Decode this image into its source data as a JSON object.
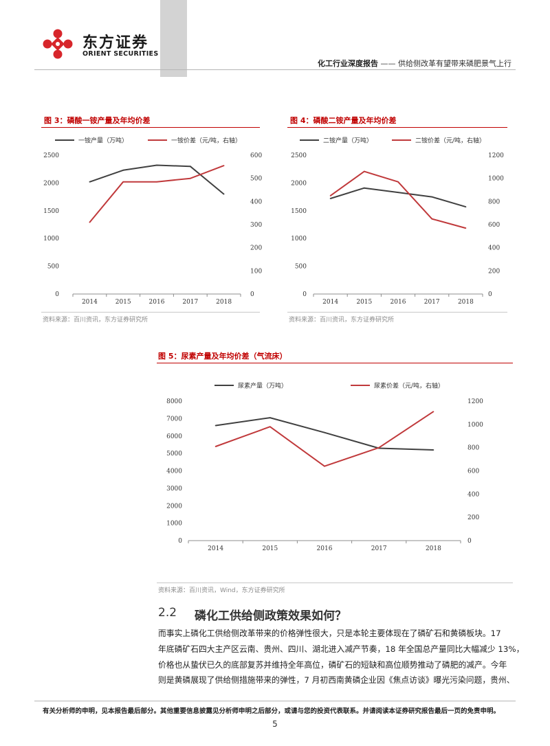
{
  "header": {
    "company_cn": "东方证券",
    "company_en": "ORIENT SECURITIES",
    "report_category": "化工行业深度报告",
    "separator": "——",
    "report_title": "供给侧改革有望带来磷肥景气上行"
  },
  "figures": [
    {
      "title": "图 3：磷酸一铵产量及年均价差",
      "source": "资料来源：百川资讯，东方证券研究所"
    },
    {
      "title": "图 4：磷酸二铵产量及年均价差",
      "source": "资料来源：百川资讯，东方证券研究所"
    },
    {
      "title": "图 5：尿素产量及年均价差（气流床）",
      "source": "资料来源：百川资讯，Wind，东方证券研究所"
    }
  ],
  "colors": {
    "series_dark": "#404040",
    "series_red": "#c0393b",
    "accent": "#c00000"
  },
  "chart_data": [
    {
      "type": "line",
      "title": "",
      "x": [
        "2014",
        "2015",
        "2016",
        "2017",
        "2018"
      ],
      "series": [
        {
          "name": "一铵产量（万吨）",
          "axis": "left",
          "color": "#404040",
          "values": [
            2020,
            2230,
            2320,
            2300,
            1800
          ]
        },
        {
          "name": "一铵价差（元/吨，右轴）",
          "axis": "right",
          "color": "#c0393b",
          "values": [
            310,
            485,
            485,
            500,
            555
          ]
        }
      ],
      "y_left": {
        "min": 0,
        "max": 2500,
        "ticks": [
          0,
          500,
          1000,
          1500,
          2000,
          2500
        ]
      },
      "y_right": {
        "min": 0,
        "max": 600,
        "ticks": [
          0,
          100,
          200,
          300,
          400,
          500,
          600
        ]
      },
      "legend": "top",
      "grid": false
    },
    {
      "type": "line",
      "title": "",
      "x": [
        "2014",
        "2015",
        "2016",
        "2017",
        "2018"
      ],
      "series": [
        {
          "name": "二铵产量（万吨）",
          "axis": "left",
          "color": "#404040",
          "values": [
            1720,
            1910,
            1830,
            1750,
            1570
          ]
        },
        {
          "name": "二铵价差（元/吨，右轴）",
          "axis": "right",
          "color": "#c0393b",
          "values": [
            850,
            1060,
            970,
            650,
            570
          ]
        }
      ],
      "y_left": {
        "min": 0,
        "max": 2500,
        "ticks": [
          0,
          500,
          1000,
          1500,
          2000,
          2500
        ]
      },
      "y_right": {
        "min": 0,
        "max": 1200,
        "ticks": [
          0,
          200,
          400,
          600,
          800,
          1000,
          1200
        ]
      },
      "legend": "top",
      "grid": false
    },
    {
      "type": "line",
      "title": "",
      "x": [
        "2014",
        "2015",
        "2016",
        "2017",
        "2018"
      ],
      "series": [
        {
          "name": "尿素产量（万吨）",
          "axis": "left",
          "color": "#404040",
          "values": [
            6600,
            7050,
            6200,
            5300,
            5200
          ]
        },
        {
          "name": "尿素价差（元/吨，右轴）",
          "axis": "right",
          "color": "#c0393b",
          "values": [
            810,
            980,
            640,
            800,
            1110
          ]
        }
      ],
      "y_left": {
        "min": 0,
        "max": 8000,
        "ticks": [
          0,
          1000,
          2000,
          3000,
          4000,
          5000,
          6000,
          7000,
          8000
        ]
      },
      "y_right": {
        "min": 0,
        "max": 1200,
        "ticks": [
          0,
          200,
          400,
          600,
          800,
          1000,
          1200
        ]
      },
      "legend": "top",
      "grid": false
    }
  ],
  "section": {
    "number": "2.2",
    "title": "磷化工供给侧政策效果如何？",
    "paragraph_lines": [
      "而事实上磷化工供给侧改革带来的价格弹性很大，只是本轮主要体现在了磷矿石和黄磷板块。17",
      "年底磷矿石四大主产区云南、贵州、四川、湖北进入减产节奏，18 年全国总产量同比大幅减少 13%，",
      "价格也从蛰伏已久的底部复苏并维持全年高位，磷矿石的短缺和高位顺势推动了磷肥的减产。今年",
      "则是黄磷展现了供给侧措施带来的弹性，7 月初西南黄磷企业因《焦点访谈》曝光污染问题，贵州、"
    ]
  },
  "footer": {
    "disclaimer": "有关分析师的申明，见本报告最后部分。其他重要信息披露见分析师申明之后部分，或请与您的投资代表联系。并请阅读本证券研究报告最后一页的免责申明。",
    "page_number": "5"
  }
}
